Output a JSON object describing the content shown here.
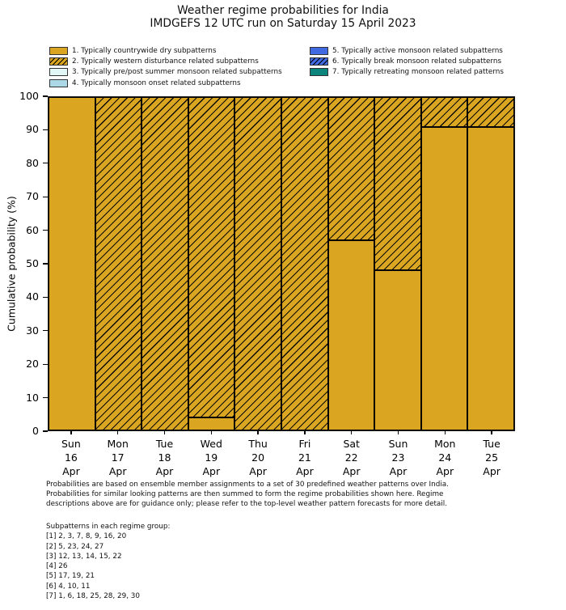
{
  "title": {
    "line1": "Weather regime probabilities for India",
    "line2": "IMDGEFS 12 UTC run on Saturday 15 April 2023"
  },
  "colors": {
    "gold": "#DAA520",
    "pale_cyan": "#E2F6F6",
    "light_blue": "#ADD8E6",
    "royal_blue": "#4169E1",
    "teal": "#0C857C",
    "hatch_line": "#000000",
    "bar_edge": "#000000"
  },
  "legend": {
    "columns": [
      4,
      3
    ],
    "items": [
      {
        "label": "1. Typically countrywide dry subpatterns",
        "color": "#DAA520",
        "hatch": false
      },
      {
        "label": "2. Typically western disturbance related subpatterns",
        "color": "#DAA520",
        "hatch": true
      },
      {
        "label": "3. Typically pre/post summer monsoon related subpatterns",
        "color": "#E2F6F6",
        "hatch": false
      },
      {
        "label": "4. Typically monsoon onset related subpatterns",
        "color": "#ADD8E6",
        "hatch": false
      },
      {
        "label": "5. Typically active monsoon related subpatterns",
        "color": "#4169E1",
        "hatch": false
      },
      {
        "label": "6. Typically break monsoon related subpatterns",
        "color": "#4169E1",
        "hatch": true
      },
      {
        "label": "7. Typically retreating monsoon related patterns",
        "color": "#0C857C",
        "hatch": false
      }
    ]
  },
  "chart_data": {
    "type": "bar",
    "stacked": true,
    "title": "Weather regime probabilities for India — IMDGEFS 12 UTC run on Saturday 15 April 2023",
    "xlabel": "",
    "ylabel": "Cumulative probability (%)",
    "ylim": [
      0,
      100
    ],
    "yticks": [
      0,
      10,
      20,
      30,
      40,
      50,
      60,
      70,
      80,
      90,
      100
    ],
    "grid": false,
    "legend_position": "top",
    "categories": [
      [
        "Sun",
        "16",
        "Apr"
      ],
      [
        "Mon",
        "17",
        "Apr"
      ],
      [
        "Tue",
        "18",
        "Apr"
      ],
      [
        "Wed",
        "19",
        "Apr"
      ],
      [
        "Thu",
        "20",
        "Apr"
      ],
      [
        "Fri",
        "21",
        "Apr"
      ],
      [
        "Sat",
        "22",
        "Apr"
      ],
      [
        "Sun",
        "23",
        "Apr"
      ],
      [
        "Mon",
        "24",
        "Apr"
      ],
      [
        "Tue",
        "25",
        "Apr"
      ]
    ],
    "series": [
      {
        "name": "1. Typically countrywide dry subpatterns",
        "pattern": "solid",
        "color": "#DAA520",
        "values": [
          100,
          0,
          0,
          4,
          0,
          0,
          57,
          48,
          91,
          91
        ]
      },
      {
        "name": "2. Typically western disturbance related subpatterns",
        "pattern": "hatch",
        "color": "#DAA520",
        "values": [
          0,
          100,
          100,
          96,
          100,
          100,
          43,
          52,
          9,
          9
        ]
      }
    ]
  },
  "footnote": {
    "lines": [
      "Probabilities are based on ensemble member assignments to a set of 30 predefined weather patterns over India.",
      "Probabilities for similar looking patterns are then summed to form the regime probabilities shown here. Regime",
      "descriptions above are for guidance only; please refer to the top-level weather pattern forecasts for more detail."
    ]
  },
  "subpatterns": {
    "header": "Subpatterns in each regime group:",
    "lines": [
      "[1] 2, 3, 7, 8, 9, 16, 20",
      "[2] 5, 23, 24, 27",
      "[3] 12, 13, 14, 15, 22",
      "[4] 26",
      "[5] 17, 19, 21",
      "[6] 4, 10, 11",
      "[7] 1, 6, 18, 25, 28, 29, 30"
    ]
  }
}
